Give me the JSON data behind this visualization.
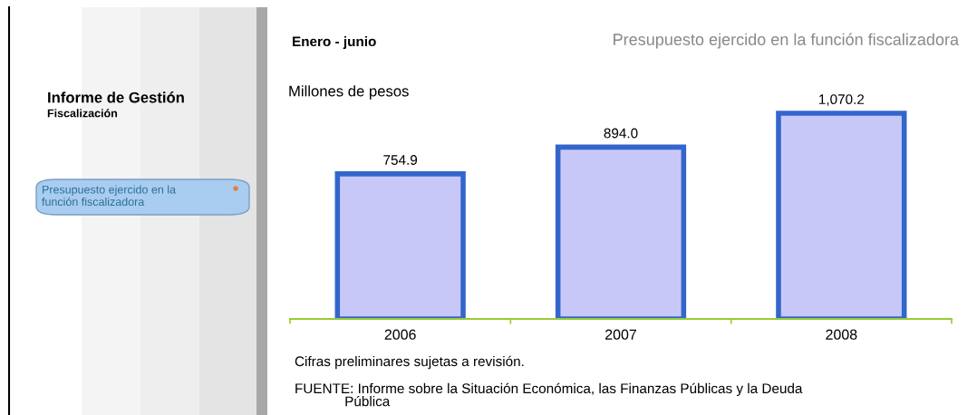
{
  "chart_data": {
    "type": "bar",
    "title": "Presupuesto ejercido en la función fiscalizadora",
    "subtitle": "Enero - junio",
    "ylabel": "Millones de pesos",
    "categories": [
      "2006",
      "2007",
      "2008"
    ],
    "values": [
      754.9,
      894.0,
      1070.2
    ],
    "value_labels": [
      "754.9",
      "894.0",
      "1,070.2"
    ],
    "color": "#c8c8f8",
    "annotations": [
      "Informe de Gestión",
      "Fiscalización",
      "Presupuesto ejercido en la\nfunción fiscalizadora",
      "Cifras preliminares sujetas a revisión.",
      "FUENTE: Informe sobre la Situación Económica, las Finanzas Públicas y la Deuda\n             Pública"
    ],
    "grid": false,
    "legend": false
  }
}
